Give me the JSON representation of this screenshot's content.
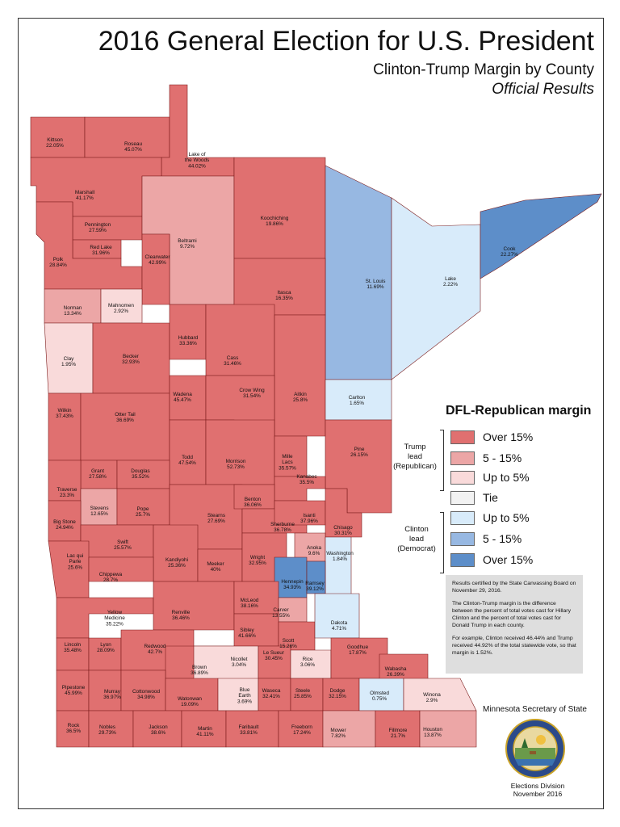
{
  "title": "2016 General Election for U.S. President",
  "subtitle": "Clinton-Trump Margin by County",
  "subtitle2": "Official Results",
  "colors": {
    "r_over15": "#e07070",
    "r_5_15": "#eca6a6",
    "r_upto5": "#f9dada",
    "tie": "#f2f2f2",
    "d_upto5": "#d8ebfa",
    "d_5_15": "#97b8e2",
    "d_over15": "#5d8ec9"
  },
  "legend": {
    "title": "DFL-Republican margin",
    "trump_group": [
      "Trump",
      "lead",
      "(Republican)"
    ],
    "clinton_group": [
      "Clinton",
      "lead",
      "(Democrat)"
    ],
    "items": [
      {
        "label": "Over 15%",
        "color": "#e07070"
      },
      {
        "label": "5 - 15%",
        "color": "#eca6a6"
      },
      {
        "label": "Up to 5%",
        "color": "#f9dada"
      },
      {
        "label": "Tie",
        "color": "#f2f2f2"
      },
      {
        "label": "Up to 5%",
        "color": "#d8ebfa"
      },
      {
        "label": "5 - 15%",
        "color": "#97b8e2"
      },
      {
        "label": "Over 15%",
        "color": "#5d8ec9"
      }
    ]
  },
  "note": {
    "p1": "Results certified by the State Canvassing Board on November 29, 2016.",
    "p2": "The Clinton-Trump margin is the difference between the percent of total votes cast for Hillary Clinton and the percent of total votes cast for Donald Trump in each county.",
    "p3": "For example, Clinton received 46.44% and Trump received 44.92% of the total statewide vote, so that margin is 1.52%."
  },
  "footer": {
    "office": "Minnesota Secretary of State",
    "division": "Elections Division",
    "date": "November 2016"
  },
  "counties": [
    {
      "name": "Kittson",
      "margin": "22.05%",
      "cat": "r_over15"
    },
    {
      "name": "Roseau",
      "margin": "45.07%",
      "cat": "r_over15"
    },
    {
      "name": "Lake of the Woods",
      "margin": "44.02%",
      "cat": "r_over15"
    },
    {
      "name": "Marshall",
      "margin": "41.17%",
      "cat": "r_over15"
    },
    {
      "name": "Pennington",
      "margin": "27.59%",
      "cat": "r_over15"
    },
    {
      "name": "Red Lake",
      "margin": "31.96%",
      "cat": "r_over15"
    },
    {
      "name": "Polk",
      "margin": "28.84%",
      "cat": "r_over15"
    },
    {
      "name": "Beltrami",
      "margin": "9.72%",
      "cat": "r_5_15"
    },
    {
      "name": "Clearwater",
      "margin": "42.99%",
      "cat": "r_over15"
    },
    {
      "name": "Koochiching",
      "margin": "19.86%",
      "cat": "r_over15"
    },
    {
      "name": "St. Louis",
      "margin": "11.69%",
      "cat": "d_5_15"
    },
    {
      "name": "Lake",
      "margin": "2.22%",
      "cat": "d_upto5"
    },
    {
      "name": "Cook",
      "margin": "22.27%",
      "cat": "d_over15"
    },
    {
      "name": "Itasca",
      "margin": "16.35%",
      "cat": "r_over15"
    },
    {
      "name": "Norman",
      "margin": "13.34%",
      "cat": "r_5_15"
    },
    {
      "name": "Mahnomen",
      "margin": "2.92%",
      "cat": "r_upto5"
    },
    {
      "name": "Clay",
      "margin": "1.95%",
      "cat": "r_upto5"
    },
    {
      "name": "Becker",
      "margin": "32.93%",
      "cat": "r_over15"
    },
    {
      "name": "Hubbard",
      "margin": "33.36%",
      "cat": "r_over15"
    },
    {
      "name": "Cass",
      "margin": "31.46%",
      "cat": "r_over15"
    },
    {
      "name": "Aitkin",
      "margin": "25.8%",
      "cat": "r_over15"
    },
    {
      "name": "Carlton",
      "margin": "1.65%",
      "cat": "d_upto5"
    },
    {
      "name": "Wilkin",
      "margin": "37.43%",
      "cat": "r_over15"
    },
    {
      "name": "Otter Tail",
      "margin": "36.69%",
      "cat": "r_over15"
    },
    {
      "name": "Wadena",
      "margin": "45.47%",
      "cat": "r_over15"
    },
    {
      "name": "Crow Wing",
      "margin": "31.54%",
      "cat": "r_over15"
    },
    {
      "name": "Pine",
      "margin": "26.15%",
      "cat": "r_over15"
    },
    {
      "name": "Todd",
      "margin": "47.54%",
      "cat": "r_over15"
    },
    {
      "name": "Morrison",
      "margin": "52.73%",
      "cat": "r_over15"
    },
    {
      "name": "Mille Lacs",
      "margin": "35.57%",
      "cat": "r_over15"
    },
    {
      "name": "Kanabec",
      "margin": "35.5%",
      "cat": "r_over15"
    },
    {
      "name": "Grant",
      "margin": "27.58%",
      "cat": "r_over15"
    },
    {
      "name": "Douglas",
      "margin": "35.52%",
      "cat": "r_over15"
    },
    {
      "name": "Traverse",
      "margin": "23.3%",
      "cat": "r_over15"
    },
    {
      "name": "Stevens",
      "margin": "12.65%",
      "cat": "r_5_15"
    },
    {
      "name": "Pope",
      "margin": "25.7%",
      "cat": "r_over15"
    },
    {
      "name": "Stearns",
      "margin": "27.69%",
      "cat": "r_over15"
    },
    {
      "name": "Benton",
      "margin": "36.06%",
      "cat": "r_over15"
    },
    {
      "name": "Sherburne",
      "margin": "36.78%",
      "cat": "r_over15"
    },
    {
      "name": "Isanti",
      "margin": "37.96%",
      "cat": "r_over15"
    },
    {
      "name": "Chisago",
      "margin": "30.31%",
      "cat": "r_over15"
    },
    {
      "name": "Big Stone",
      "margin": "24.94%",
      "cat": "r_over15"
    },
    {
      "name": "Swift",
      "margin": "25.57%",
      "cat": "r_over15"
    },
    {
      "name": "Kandiyohi",
      "margin": "25.36%",
      "cat": "r_over15"
    },
    {
      "name": "Meeker",
      "margin": "40%",
      "cat": "r_over15"
    },
    {
      "name": "Wright",
      "margin": "32.95%",
      "cat": "r_over15"
    },
    {
      "name": "Anoka",
      "margin": "9.6%",
      "cat": "r_5_15"
    },
    {
      "name": "Washington",
      "margin": "1.84%",
      "cat": "d_upto5"
    },
    {
      "name": "Lac qui Parle",
      "margin": "25.6%",
      "cat": "r_over15"
    },
    {
      "name": "Chippewa",
      "margin": "28.7%",
      "cat": "r_over15"
    },
    {
      "name": "Hennepin",
      "margin": "34.93%",
      "cat": "d_over15"
    },
    {
      "name": "Ramsey",
      "margin": "39.12%",
      "cat": "d_over15"
    },
    {
      "name": "Yellow Medicine",
      "margin": "35.22%",
      "cat": "r_over15"
    },
    {
      "name": "Renville",
      "margin": "36.46%",
      "cat": "r_over15"
    },
    {
      "name": "McLeod",
      "margin": "38.16%",
      "cat": "r_over15"
    },
    {
      "name": "Carver",
      "margin": "13.55%",
      "cat": "r_5_15"
    },
    {
      "name": "Sibley",
      "margin": "41.66%",
      "cat": "r_over15"
    },
    {
      "name": "Scott",
      "margin": "15.26%",
      "cat": "r_over15"
    },
    {
      "name": "Dakota",
      "margin": "4.71%",
      "cat": "d_upto5"
    },
    {
      "name": "Lincoln",
      "margin": "35.48%",
      "cat": "r_over15"
    },
    {
      "name": "Lyon",
      "margin": "28.09%",
      "cat": "r_over15"
    },
    {
      "name": "Redwood",
      "margin": "42.7%",
      "cat": "r_over15"
    },
    {
      "name": "Brown",
      "margin": "36.89%",
      "cat": "r_over15"
    },
    {
      "name": "Nicollet",
      "margin": "3.04%",
      "cat": "r_upto5"
    },
    {
      "name": "Le Sueur",
      "margin": "30.45%",
      "cat": "r_over15"
    },
    {
      "name": "Rice",
      "margin": "3.06%",
      "cat": "r_upto5"
    },
    {
      "name": "Goodhue",
      "margin": "17.87%",
      "cat": "r_over15"
    },
    {
      "name": "Wabasha",
      "margin": "26.39%",
      "cat": "r_over15"
    },
    {
      "name": "Pipestone",
      "margin": "45.99%",
      "cat": "r_over15"
    },
    {
      "name": "Murray",
      "margin": "36.97%",
      "cat": "r_over15"
    },
    {
      "name": "Cottonwood",
      "margin": "34.98%",
      "cat": "r_over15"
    },
    {
      "name": "Watonwan",
      "margin": "19.09%",
      "cat": "r_over15"
    },
    {
      "name": "Blue Earth",
      "margin": "3.69%",
      "cat": "r_upto5"
    },
    {
      "name": "Waseca",
      "margin": "32.41%",
      "cat": "r_over15"
    },
    {
      "name": "Steele",
      "margin": "25.85%",
      "cat": "r_over15"
    },
    {
      "name": "Dodge",
      "margin": "32.15%",
      "cat": "r_over15"
    },
    {
      "name": "Olmsted",
      "margin": "0.75%",
      "cat": "d_upto5"
    },
    {
      "name": "Winona",
      "margin": "2.9%",
      "cat": "r_upto5"
    },
    {
      "name": "Rock",
      "margin": "36.5%",
      "cat": "r_over15"
    },
    {
      "name": "Nobles",
      "margin": "29.73%",
      "cat": "r_over15"
    },
    {
      "name": "Jackson",
      "margin": "38.6%",
      "cat": "r_over15"
    },
    {
      "name": "Martin",
      "margin": "41.11%",
      "cat": "r_over15"
    },
    {
      "name": "Faribault",
      "margin": "33.81%",
      "cat": "r_over15"
    },
    {
      "name": "Freeborn",
      "margin": "17.24%",
      "cat": "r_over15"
    },
    {
      "name": "Mower",
      "margin": "7.82%",
      "cat": "r_5_15"
    },
    {
      "name": "Fillmore",
      "margin": "21.7%",
      "cat": "r_over15"
    },
    {
      "name": "Houston",
      "margin": "13.87%",
      "cat": "r_5_15"
    }
  ]
}
